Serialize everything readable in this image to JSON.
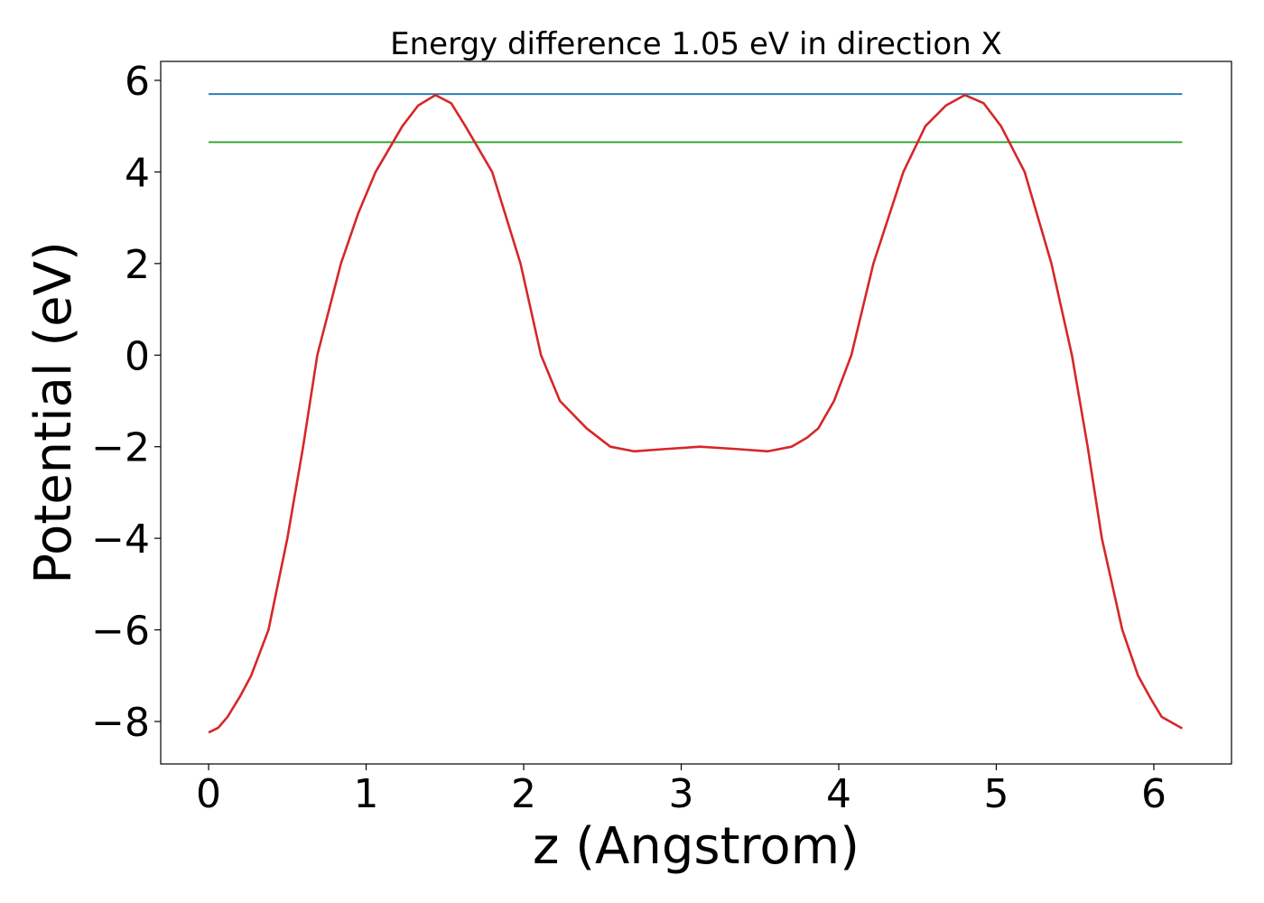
{
  "chart_data": {
    "type": "line",
    "title": "Energy difference 1.05 eV in direction X",
    "xlabel": "z (Angstrom)",
    "ylabel": "Potential (eV)",
    "xlim": [
      -0.304,
      6.493
    ],
    "ylim": [
      -8.927,
      6.414
    ],
    "xticks": [
      0,
      1,
      2,
      3,
      4,
      5,
      6
    ],
    "yticks": [
      {
        "value": -8,
        "label": "−8"
      },
      {
        "value": -6,
        "label": "−6"
      },
      {
        "value": -4,
        "label": "−4"
      },
      {
        "value": -2,
        "label": "−2"
      },
      0,
      2,
      4,
      6
    ],
    "series": [
      {
        "color": "#1f77b4",
        "x": [
          0,
          6.18
        ],
        "values": [
          5.7,
          5.7
        ]
      },
      {
        "color": "#2ca02c",
        "x": [
          0,
          6.18
        ],
        "values": [
          4.65,
          4.65
        ]
      },
      {
        "color": "#d62728",
        "x": [
          0,
          0.06,
          0.12,
          0.2,
          0.27,
          0.38,
          0.5,
          0.6,
          0.69,
          0.84,
          0.95,
          1.06,
          1.23,
          1.33,
          1.44,
          1.54,
          1.63,
          1.8,
          1.98,
          2.11,
          2.23,
          2.4,
          2.55,
          2.7,
          2.9,
          3.12,
          3.35,
          3.55,
          3.7,
          3.8,
          3.87,
          3.97,
          4.08,
          4.22,
          4.41,
          4.55,
          4.68,
          4.8,
          4.92,
          5.03,
          5.18,
          5.35,
          5.48,
          5.58,
          5.67,
          5.8,
          5.9,
          5.98,
          6.05,
          6.18
        ],
        "values": [
          -8.24,
          -8.14,
          -7.9,
          -7.45,
          -7.0,
          -6.0,
          -4.0,
          -2.0,
          0.0,
          2.0,
          3.1,
          4.0,
          5.0,
          5.45,
          5.68,
          5.5,
          5.0,
          4.0,
          2.0,
          0.0,
          -1.0,
          -1.6,
          -2.0,
          -2.1,
          -2.05,
          -2.0,
          -2.05,
          -2.1,
          -2.0,
          -1.8,
          -1.6,
          -1.0,
          0.0,
          2.0,
          4.0,
          5.0,
          5.45,
          5.68,
          5.5,
          5.0,
          4.0,
          2.0,
          0.0,
          -2.0,
          -4.0,
          -6.0,
          -7.0,
          -7.5,
          -7.9,
          -8.15
        ]
      }
    ]
  }
}
